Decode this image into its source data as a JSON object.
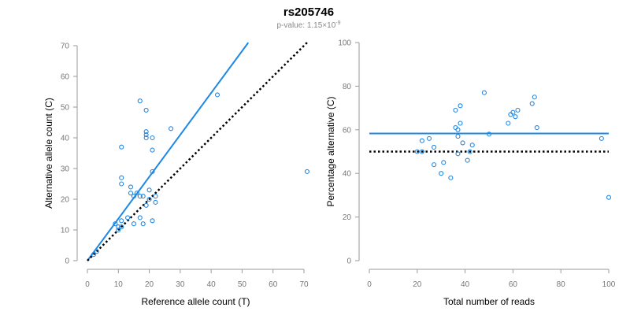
{
  "title": "rs205746",
  "subtitle_prefix": "p-value: 1.15×10",
  "subtitle_exp": "-9",
  "colors": {
    "points": "#1e88e5",
    "fit_line": "#1e88e5",
    "null_line": "#000000",
    "axis": "#999999",
    "tick_text": "#777777",
    "label_text": "#000000",
    "subtitle": "#888888"
  },
  "chart_data": [
    {
      "type": "scatter",
      "xlabel": "Reference allele count (T)",
      "ylabel": "Alternative allele count (C)",
      "xlim": [
        0,
        70
      ],
      "ylim": [
        0,
        70
      ],
      "xticks": [
        0,
        10,
        20,
        30,
        40,
        50,
        60,
        70
      ],
      "yticks": [
        0,
        10,
        20,
        30,
        40,
        50,
        60,
        70
      ],
      "grid": false,
      "points": [
        [
          2,
          2
        ],
        [
          3,
          3
        ],
        [
          9,
          12
        ],
        [
          10,
          10
        ],
        [
          10,
          11
        ],
        [
          11,
          11
        ],
        [
          11,
          13
        ],
        [
          11,
          25
        ],
        [
          11,
          27
        ],
        [
          11,
          37
        ],
        [
          13,
          14
        ],
        [
          14,
          22
        ],
        [
          14,
          24
        ],
        [
          15,
          12
        ],
        [
          15,
          21
        ],
        [
          16,
          22
        ],
        [
          17,
          14
        ],
        [
          17,
          21
        ],
        [
          17,
          52
        ],
        [
          18,
          12
        ],
        [
          18,
          21
        ],
        [
          19,
          18
        ],
        [
          19,
          40
        ],
        [
          19,
          41
        ],
        [
          19,
          42
        ],
        [
          19,
          49
        ],
        [
          20,
          20
        ],
        [
          20,
          23
        ],
        [
          21,
          13
        ],
        [
          21,
          29
        ],
        [
          21,
          36
        ],
        [
          21,
          40
        ],
        [
          22,
          19
        ],
        [
          22,
          21
        ],
        [
          27,
          43
        ],
        [
          42,
          54
        ],
        [
          71,
          29
        ]
      ],
      "lines": [
        {
          "kind": "fit",
          "style": "solid",
          "x": [
            0,
            52
          ],
          "y": [
            0,
            71
          ]
        },
        {
          "kind": "null",
          "style": "dotted",
          "x": [
            0,
            71
          ],
          "y": [
            0,
            71
          ]
        }
      ]
    },
    {
      "type": "scatter",
      "xlabel": "Total number of reads",
      "ylabel": "Percentage alternative (C)",
      "xlim": [
        0,
        100
      ],
      "ylim": [
        0,
        100
      ],
      "xticks": [
        0,
        20,
        40,
        60,
        80,
        100
      ],
      "yticks": [
        0,
        20,
        40,
        60,
        80,
        100
      ],
      "grid": false,
      "points": [
        [
          20,
          50
        ],
        [
          22,
          50
        ],
        [
          22,
          55
        ],
        [
          25,
          56
        ],
        [
          27,
          52
        ],
        [
          27,
          44
        ],
        [
          30,
          40
        ],
        [
          31,
          45
        ],
        [
          34,
          38
        ],
        [
          36,
          69
        ],
        [
          36,
          61
        ],
        [
          37,
          60
        ],
        [
          37,
          57
        ],
        [
          37,
          49
        ],
        [
          38,
          71
        ],
        [
          38,
          63
        ],
        [
          39,
          54
        ],
        [
          41,
          46
        ],
        [
          42,
          50
        ],
        [
          43,
          53
        ],
        [
          48,
          77
        ],
        [
          50,
          58
        ],
        [
          58,
          63
        ],
        [
          59,
          67
        ],
        [
          60,
          68
        ],
        [
          61,
          66
        ],
        [
          62,
          69
        ],
        [
          68,
          72
        ],
        [
          69,
          75
        ],
        [
          70,
          61
        ],
        [
          97,
          56
        ],
        [
          100,
          29
        ]
      ],
      "lines": [
        {
          "kind": "fit",
          "style": "solid",
          "x": [
            0,
            100
          ],
          "y": [
            58.3,
            58.3
          ]
        },
        {
          "kind": "null",
          "style": "dotted",
          "x": [
            0,
            100
          ],
          "y": [
            50,
            50
          ]
        }
      ]
    }
  ]
}
